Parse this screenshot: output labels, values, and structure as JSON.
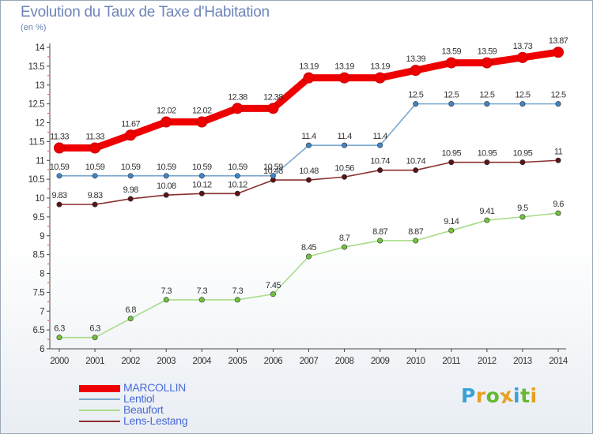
{
  "chart_data": {
    "type": "line",
    "title": "Evolution du Taux de Taxe d'Habitation",
    "subtitle": "(en %)",
    "x": [
      "2000",
      "2001",
      "2002",
      "2003",
      "2004",
      "2005",
      "2006",
      "2007",
      "2008",
      "2009",
      "2010",
      "2011",
      "2012",
      "2013",
      "2014"
    ],
    "ylim": [
      6,
      14
    ],
    "yticks": [
      "6",
      "6.5",
      "7",
      "7.5",
      "8",
      "8.5",
      "9",
      "9.5",
      "10",
      "10.5",
      "11",
      "11.5",
      "12",
      "12.5",
      "13",
      "13.5",
      "14"
    ],
    "grid": false,
    "legend_position": "bottom-left",
    "series": [
      {
        "name": "MARCOLLIN",
        "color": "#ee0000",
        "values": [
          11.33,
          11.33,
          11.67,
          12.02,
          12.02,
          12.38,
          12.38,
          13.19,
          13.19,
          13.19,
          13.39,
          13.59,
          13.59,
          13.73,
          13.87
        ],
        "labels": [
          "11.33",
          "11.33",
          "11.67",
          "12.02",
          "12.02",
          "12.38",
          "12.38",
          "13.19",
          "13.19",
          "13.19",
          "13.39",
          "13.59",
          "13.59",
          "13.73",
          "13.87"
        ]
      },
      {
        "name": "Lentiol",
        "color": "#7aa8cf",
        "marker": "#3f86c8",
        "values": [
          10.59,
          10.59,
          10.59,
          10.59,
          10.59,
          10.59,
          10.59,
          11.4,
          11.4,
          11.4,
          12.5,
          12.5,
          12.5,
          12.5,
          12.5
        ],
        "labels": [
          "10.59",
          "10.59",
          "10.59",
          "10.59",
          "10.59",
          "10.59",
          "10.59",
          "11.4",
          "11.4",
          "11.4",
          "12.5",
          "12.5",
          "12.5",
          "12.5",
          "12.5"
        ]
      },
      {
        "name": "Beaufort",
        "color": "#a8dc88",
        "marker": "#6fc43c",
        "values": [
          6.3,
          6.3,
          6.8,
          7.3,
          7.3,
          7.3,
          7.45,
          8.45,
          8.7,
          8.87,
          8.87,
          9.14,
          9.41,
          9.5,
          9.6
        ],
        "labels": [
          "6.3",
          "6.3",
          "6.8",
          "7.3",
          "7.3",
          "7.3",
          "7.45",
          "8.45",
          "8.7",
          "8.87",
          "8.87",
          "9.14",
          "9.41",
          "9.5",
          "9.6"
        ]
      },
      {
        "name": "Lens-Lestang",
        "color": "#8a3030",
        "marker": "#5a1414",
        "values": [
          9.83,
          9.83,
          9.98,
          10.08,
          10.12,
          10.12,
          10.48,
          10.48,
          10.56,
          10.74,
          10.74,
          10.95,
          10.95,
          10.95,
          11
        ],
        "labels": [
          "9.83",
          "9.83",
          "9.98",
          "10.08",
          "10.12",
          "10.12",
          "10.48",
          "10.48",
          "10.56",
          "10.74",
          "10.74",
          "10.95",
          "10.95",
          "10.95",
          "11"
        ]
      }
    ]
  },
  "logo": {
    "letters": [
      "P",
      "r",
      "o",
      "x",
      "i",
      "t",
      "i"
    ],
    "colors": [
      "#3aa0d8",
      "#e8a020",
      "#66b832",
      "#e8a020",
      "#3aa0d8",
      "#66b832",
      "#e8a020"
    ]
  }
}
